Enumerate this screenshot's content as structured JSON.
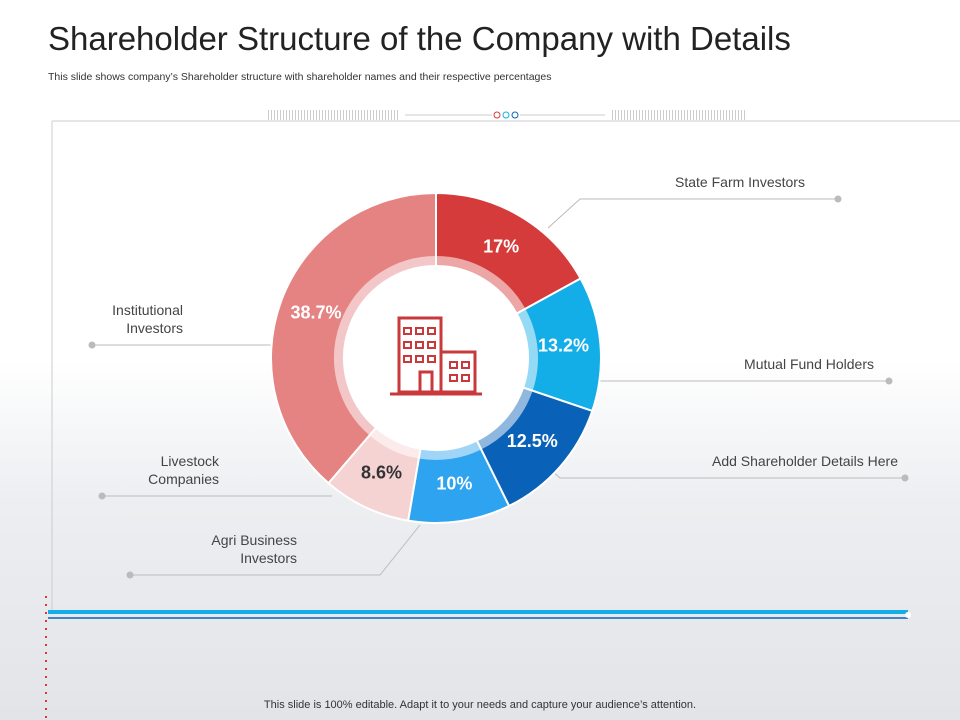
{
  "chart_data": {
    "type": "pie",
    "donut": true,
    "title": "Shareholder Structure of the Company with Details",
    "subtitle": "This slide shows company’s Shareholder structure with shareholder names and their respective percentages",
    "categories": [
      "State Farm Investors",
      "Mutual Fund Holders",
      "Add Shareholder Details Here",
      "Agri Business Investors",
      "Livestock Companies",
      "Institutional Investors"
    ],
    "values": [
      17,
      13.2,
      12.5,
      10,
      8.6,
      38.7
    ],
    "value_labels": [
      "17%",
      "13.2%",
      "12.5%",
      "10%",
      "8.6%",
      "38.7%"
    ],
    "colors": [
      "#d63b3b",
      "#13aee8",
      "#0a62b8",
      "#2ea3ef",
      "#f6d3d3",
      "#e58383"
    ],
    "footer": "This slide is 100% editable. Adapt it to your needs and capture your audience’s attention."
  }
}
